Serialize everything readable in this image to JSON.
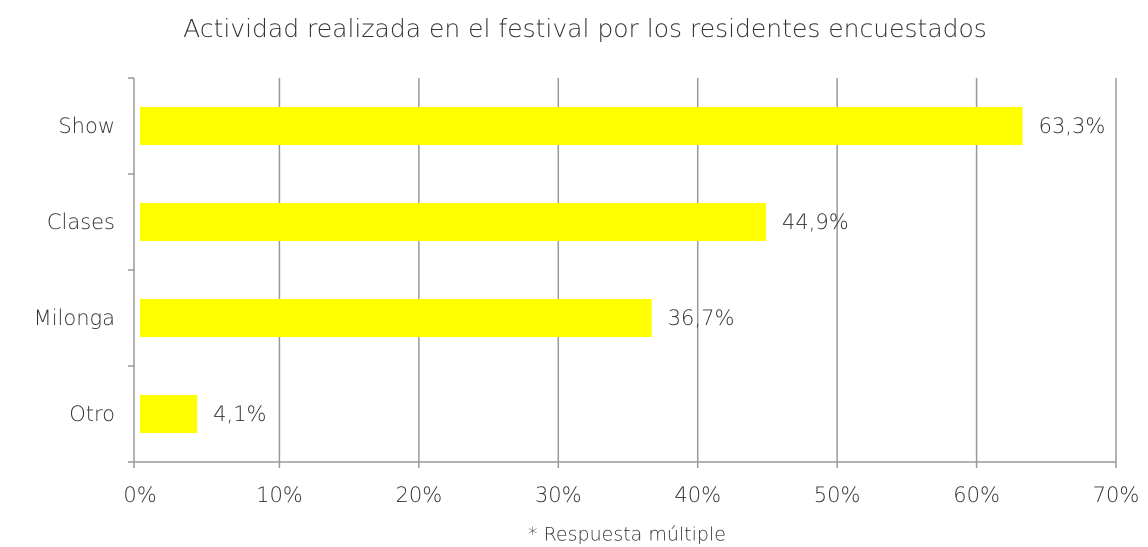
{
  "chart_data": {
    "type": "bar",
    "orientation": "horizontal",
    "title": "Actividad realizada en el festival por los residentes encuestados",
    "categories": [
      "Show",
      "Clases",
      "Milonga",
      "Otro"
    ],
    "values": [
      63.3,
      44.9,
      36.7,
      4.1
    ],
    "value_labels": [
      "63,3%",
      "44,9%",
      "36,7%",
      "4,1%"
    ],
    "color": "#ffff00",
    "xlim": [
      0,
      70
    ],
    "xticks": [
      {
        "value": 0,
        "label": "0%"
      },
      {
        "value": 10,
        "label": "10%"
      },
      {
        "value": 20,
        "label": "20%"
      },
      {
        "value": 30,
        "label": "30%"
      },
      {
        "value": 40,
        "label": "40%"
      },
      {
        "value": 50,
        "label": "50%"
      },
      {
        "value": 60,
        "label": "60%"
      },
      {
        "value": 70,
        "label": "70%"
      }
    ],
    "grid": true,
    "note": "* Respuesta múltiple"
  }
}
